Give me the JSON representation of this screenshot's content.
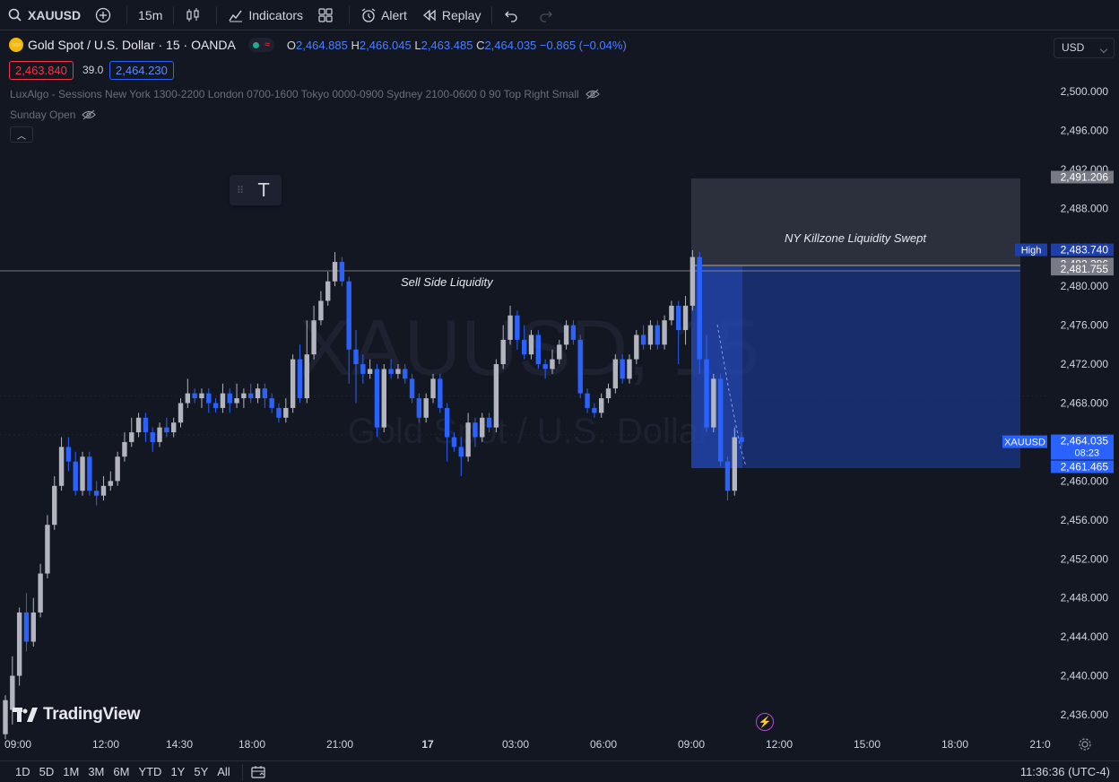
{
  "toolbar": {
    "symbol": "XAUUSD",
    "interval": "15m",
    "indicators_label": "Indicators",
    "alert_label": "Alert",
    "replay_label": "Replay"
  },
  "legend": {
    "title": "Gold Spot / U.S. Dollar · 15 · OANDA",
    "o_label": "O",
    "o": "2,464.885",
    "h_label": "H",
    "h": "2,466.045",
    "l_label": "L",
    "l": "2,463.485",
    "c_label": "C",
    "c": "2,464.035",
    "change": "−0.865 (−0.04%)",
    "sell_price": "2,463.840",
    "spread": "39.0",
    "buy_price": "2,464.230",
    "indicator1": "LuxAlgo - Sessions New York 1300-2200 London 0700-1600 Tokyo 0000-0900 Sydney 2100-0600 0 90 Top Right Small",
    "indicator2": "Sunday Open"
  },
  "currency": "USD",
  "watermark": {
    "symbol": "XAUUSD, 15",
    "name": "Gold Spot / U.S. Dollar"
  },
  "annotations": {
    "sell_side": "Sell Side Liquidity",
    "killzone": "NY Killzone Liquidity Swept"
  },
  "branding": "TradingView",
  "bottombar": {
    "ranges": [
      "1D",
      "5D",
      "1M",
      "3M",
      "6M",
      "YTD",
      "1Y",
      "5Y",
      "All"
    ],
    "clock": "11:36:36 (UTC-4)"
  },
  "colors": {
    "background": "#131722",
    "up": "#b2b5be",
    "down": "#2962ff",
    "zone_gray": "#363a45",
    "zone_blue": "#1e3fa8"
  },
  "chart_data": {
    "type": "candlestick",
    "y_axis_labels": [
      "2,500.000",
      "2,496.000",
      "2,492.000",
      "2,488.000",
      "2,484.000",
      "2,480.000",
      "2,476.000",
      "2,472.000",
      "2,468.000",
      "2,464.000",
      "2,460.000",
      "2,456.000",
      "2,452.000",
      "2,448.000",
      "2,444.000",
      "2,440.000",
      "2,436.000"
    ],
    "ylim": [
      2434,
      2502
    ],
    "x_axis_labels": [
      "09:00",
      "12:00",
      "14:30",
      "18:00",
      "21:00",
      "17",
      "03:00",
      "06:00",
      "09:00",
      "12:00",
      "15:00",
      "18:00",
      "21:0"
    ],
    "price_markers": [
      {
        "label": "",
        "value": "2,491.206"
      },
      {
        "label": "High",
        "value": "2,483.740"
      },
      {
        "label": "",
        "value": "2,482.286"
      },
      {
        "label": "",
        "value": "2,481.755"
      },
      {
        "label": "XAUUSD",
        "value": "2,464.035",
        "countdown": "08:23"
      },
      {
        "label": "",
        "value": "2,461.465"
      }
    ],
    "candles": [
      [
        2434.0,
        2437.5,
        2433.5,
        2438.0
      ],
      [
        2436.5,
        2440.0,
        2435.0,
        2442.0
      ],
      [
        2440.0,
        2446.5,
        2439.0,
        2447.0
      ],
      [
        2446.5,
        2443.5,
        2442.5,
        2448.5
      ],
      [
        2443.5,
        2446.5,
        2443.0,
        2448.0
      ],
      [
        2446.5,
        2450.5,
        2446.0,
        2451.5
      ],
      [
        2450.5,
        2455.5,
        2450.0,
        2456.5
      ],
      [
        2455.5,
        2459.5,
        2455.0,
        2460.5
      ],
      [
        2459.5,
        2463.5,
        2459.0,
        2464.5
      ],
      [
        2463.5,
        2462.0,
        2461.0,
        2464.5
      ],
      [
        2462.0,
        2459.0,
        2458.5,
        2463.0
      ],
      [
        2459.0,
        2462.5,
        2458.5,
        2463.0
      ],
      [
        2462.5,
        2459.0,
        2458.5,
        2463.0
      ],
      [
        2459.0,
        2458.5,
        2457.5,
        2460.0
      ],
      [
        2458.5,
        2459.5,
        2458.0,
        2460.5
      ],
      [
        2459.5,
        2460.0,
        2459.0,
        2461.0
      ],
      [
        2460.0,
        2462.5,
        2459.5,
        2463.0
      ],
      [
        2462.5,
        2464.0,
        2462.0,
        2465.0
      ],
      [
        2464.0,
        2465.0,
        2463.5,
        2466.5
      ],
      [
        2465.0,
        2466.5,
        2464.5,
        2467.0
      ],
      [
        2466.5,
        2465.0,
        2464.0,
        2467.0
      ],
      [
        2465.0,
        2464.0,
        2463.0,
        2465.5
      ],
      [
        2464.0,
        2465.5,
        2463.5,
        2466.0
      ],
      [
        2465.5,
        2465.0,
        2464.5,
        2466.5
      ],
      [
        2465.0,
        2466.0,
        2464.5,
        2466.5
      ],
      [
        2466.0,
        2468.0,
        2465.5,
        2468.5
      ],
      [
        2468.0,
        2469.0,
        2467.5,
        2470.5
      ],
      [
        2469.0,
        2468.5,
        2468.0,
        2469.5
      ],
      [
        2468.5,
        2469.0,
        2467.5,
        2469.5
      ],
      [
        2469.0,
        2468.0,
        2467.0,
        2469.5
      ],
      [
        2468.0,
        2467.5,
        2467.0,
        2468.5
      ],
      [
        2467.5,
        2469.0,
        2467.0,
        2470.0
      ],
      [
        2469.0,
        2468.0,
        2467.0,
        2469.5
      ],
      [
        2468.0,
        2468.5,
        2467.5,
        2470.0
      ],
      [
        2468.5,
        2469.0,
        2467.5,
        2469.5
      ],
      [
        2469.0,
        2468.5,
        2468.0,
        2470.0
      ],
      [
        2468.5,
        2469.5,
        2468.0,
        2470.0
      ],
      [
        2469.5,
        2468.5,
        2467.5,
        2470.0
      ],
      [
        2468.5,
        2467.5,
        2467.0,
        2469.0
      ],
      [
        2467.5,
        2466.5,
        2466.0,
        2468.0
      ],
      [
        2466.5,
        2467.5,
        2466.0,
        2468.5
      ],
      [
        2467.5,
        2472.5,
        2467.0,
        2473.0
      ],
      [
        2472.5,
        2468.5,
        2468.0,
        2474.0
      ],
      [
        2468.5,
        2473.0,
        2468.0,
        2476.5
      ],
      [
        2473.0,
        2476.5,
        2472.5,
        2478.0
      ],
      [
        2476.5,
        2478.5,
        2476.0,
        2479.5
      ],
      [
        2478.5,
        2480.5,
        2478.0,
        2481.5
      ],
      [
        2480.5,
        2482.5,
        2480.0,
        2483.5
      ],
      [
        2482.5,
        2480.5,
        2480.0,
        2483.0
      ],
      [
        2480.5,
        2473.5,
        2470.0,
        2481.0
      ],
      [
        2473.5,
        2472.0,
        2468.0,
        2475.5
      ],
      [
        2472.0,
        2471.0,
        2470.0,
        2473.0
      ],
      [
        2471.0,
        2471.5,
        2470.5,
        2472.5
      ],
      [
        2471.5,
        2465.5,
        2464.5,
        2472.0
      ],
      [
        2465.5,
        2471.5,
        2465.0,
        2472.0
      ],
      [
        2471.5,
        2471.0,
        2470.5,
        2472.5
      ],
      [
        2471.0,
        2471.5,
        2470.5,
        2472.0
      ],
      [
        2471.5,
        2470.5,
        2470.0,
        2472.0
      ],
      [
        2470.5,
        2468.5,
        2468.0,
        2471.0
      ],
      [
        2468.5,
        2466.5,
        2466.0,
        2469.0
      ],
      [
        2466.5,
        2468.5,
        2466.0,
        2469.0
      ],
      [
        2468.5,
        2470.5,
        2468.0,
        2471.0
      ],
      [
        2470.5,
        2467.5,
        2467.0,
        2471.0
      ],
      [
        2467.5,
        2464.5,
        2462.0,
        2468.0
      ],
      [
        2464.5,
        2463.5,
        2463.0,
        2465.0
      ],
      [
        2463.5,
        2462.5,
        2460.5,
        2464.5
      ],
      [
        2462.5,
        2466.0,
        2462.0,
        2467.0
      ],
      [
        2466.0,
        2464.5,
        2463.5,
        2466.5
      ],
      [
        2464.5,
        2466.5,
        2464.0,
        2467.0
      ],
      [
        2466.5,
        2465.5,
        2465.0,
        2467.0
      ],
      [
        2465.5,
        2472.0,
        2465.0,
        2472.5
      ],
      [
        2472.0,
        2474.5,
        2471.5,
        2476.0
      ],
      [
        2474.5,
        2477.0,
        2474.0,
        2478.0
      ],
      [
        2477.0,
        2474.5,
        2473.5,
        2477.5
      ],
      [
        2474.5,
        2473.0,
        2472.5,
        2476.0
      ],
      [
        2473.0,
        2475.0,
        2472.5,
        2475.5
      ],
      [
        2475.0,
        2472.0,
        2471.5,
        2475.5
      ],
      [
        2472.0,
        2471.5,
        2470.5,
        2472.5
      ],
      [
        2471.5,
        2472.5,
        2471.0,
        2473.5
      ],
      [
        2472.5,
        2474.0,
        2472.0,
        2474.5
      ],
      [
        2474.0,
        2476.0,
        2473.5,
        2476.5
      ],
      [
        2476.0,
        2474.5,
        2474.0,
        2476.5
      ],
      [
        2474.5,
        2469.0,
        2468.5,
        2475.0
      ],
      [
        2469.0,
        2467.5,
        2467.0,
        2469.5
      ],
      [
        2467.5,
        2467.0,
        2466.5,
        2468.0
      ],
      [
        2467.0,
        2468.5,
        2466.5,
        2469.0
      ],
      [
        2468.5,
        2469.5,
        2468.0,
        2470.0
      ],
      [
        2469.5,
        2472.5,
        2469.0,
        2473.0
      ],
      [
        2472.5,
        2470.5,
        2470.0,
        2473.0
      ],
      [
        2470.5,
        2472.5,
        2470.0,
        2473.0
      ],
      [
        2472.5,
        2475.0,
        2472.0,
        2475.5
      ],
      [
        2475.0,
        2474.0,
        2473.5,
        2476.0
      ],
      [
        2474.0,
        2476.0,
        2473.5,
        2476.5
      ],
      [
        2476.0,
        2474.0,
        2473.5,
        2476.5
      ],
      [
        2474.0,
        2476.5,
        2473.5,
        2477.0
      ],
      [
        2476.5,
        2478.0,
        2476.0,
        2478.5
      ],
      [
        2478.0,
        2475.5,
        2472.0,
        2478.5
      ],
      [
        2475.5,
        2478.0,
        2474.0,
        2479.0
      ],
      [
        2478.0,
        2483.0,
        2477.5,
        2483.7
      ],
      [
        2483.0,
        2472.5,
        2471.0,
        2483.5
      ],
      [
        2472.5,
        2465.5,
        2465.0,
        2475.0
      ],
      [
        2465.5,
        2470.5,
        2465.0,
        2471.0
      ],
      [
        2470.5,
        2462.0,
        2461.5,
        2471.0
      ],
      [
        2462.0,
        2459.0,
        2458.0,
        2462.5
      ],
      [
        2459.0,
        2464.5,
        2458.5,
        2465.5
      ],
      [
        2464.5,
        2464.0,
        2463.5,
        2465.0
      ]
    ]
  }
}
